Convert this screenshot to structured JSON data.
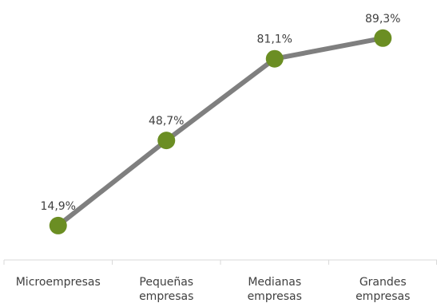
{
  "chart_data": {
    "type": "line",
    "categories": [
      [
        "Microempresas"
      ],
      [
        "Pequeñas",
        "empresas"
      ],
      [
        "Medianas",
        "empresas"
      ],
      [
        "Grandes",
        "empresas"
      ]
    ],
    "series": [
      {
        "values": [
          14.9,
          48.7,
          81.1,
          89.3
        ],
        "data_labels": [
          "14,9%",
          "48,7%",
          "81,1%",
          "89,3%"
        ]
      }
    ],
    "ylim": [
      0,
      100
    ],
    "grid": false,
    "legend": "none",
    "colors": {
      "line": "#7f7f7f",
      "marker": "#6b8e23",
      "axis": "#d9d9d9",
      "text": "#404040"
    }
  }
}
